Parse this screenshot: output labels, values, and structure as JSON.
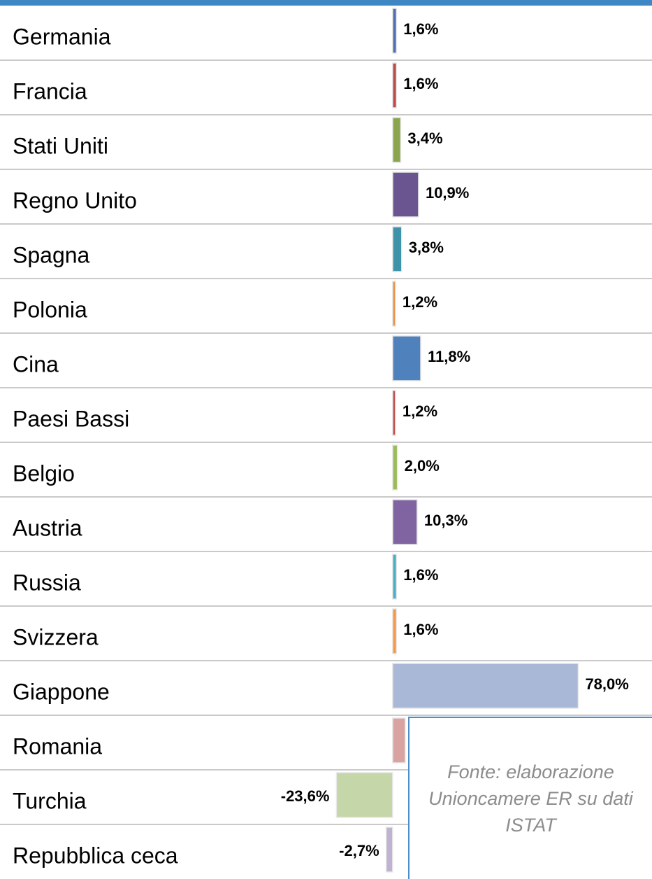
{
  "chart_data": {
    "type": "bar",
    "orientation": "horizontal",
    "categories": [
      "Germania",
      "Francia",
      "Stati Uniti",
      "Regno Unito",
      "Spagna",
      "Polonia",
      "Cina",
      "Paesi Bassi",
      "Belgio",
      "Austria",
      "Russia",
      "Svizzera",
      "Giappone",
      "Romania",
      "Turchia",
      "Repubblica ceca"
    ],
    "values": [
      1.6,
      1.6,
      3.4,
      10.9,
      3.8,
      1.2,
      11.8,
      1.2,
      2.0,
      10.3,
      1.6,
      1.6,
      78.0,
      5.3,
      -23.6,
      -2.7
    ],
    "value_labels": [
      "1,6%",
      "1,6%",
      "3,4%",
      "10,9%",
      "3,8%",
      "1,2%",
      "11,8%",
      "1,2%",
      "2,0%",
      "10,3%",
      "1,6%",
      "1,6%",
      "78,0%",
      "5,3%",
      "-23,6%",
      "-2,7%"
    ],
    "colors": [
      "#4f6fb0",
      "#b94a48",
      "#8aa54e",
      "#6b5590",
      "#3f93a8",
      "#e8924a",
      "#4f81bd",
      "#c0504d",
      "#9bbb59",
      "#8064a2",
      "#4bacc6",
      "#f79646",
      "#a9b8d6",
      "#d9a3a2",
      "#c5d6a8",
      "#c0b3d1"
    ],
    "xlim": [
      -165,
      109
    ],
    "note": "Fonte: elaborazione Unioncamere ER su dati ISTAT"
  }
}
